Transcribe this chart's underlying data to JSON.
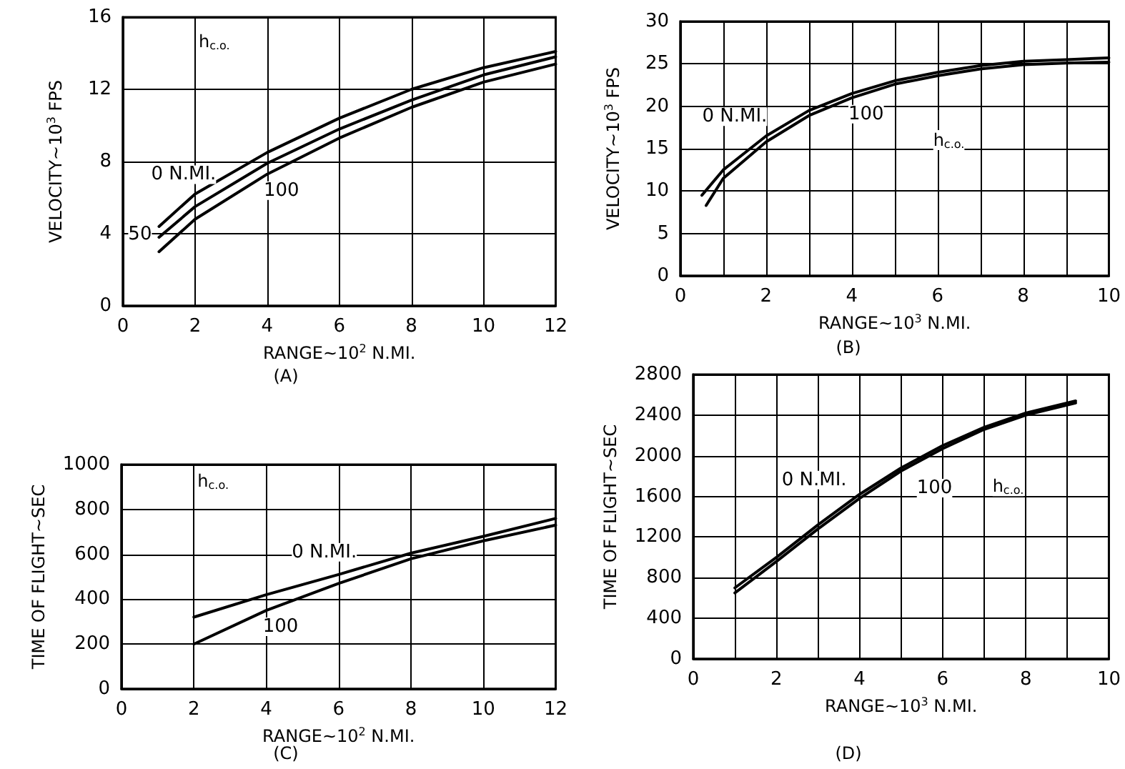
{
  "chart_data": [
    {
      "type": "line",
      "title": "(A)",
      "xlabel": "RANGE~10$^{2}$ N.MI.",
      "ylabel": "VELOCITY~10$^{3}$ FPS",
      "legend_title": "h$_{c.o.}$",
      "xlim": [
        0,
        12
      ],
      "xticks": [
        0,
        2,
        4,
        6,
        8,
        10,
        12
      ],
      "ylim": [
        0,
        16
      ],
      "yticks": [
        0,
        4,
        8,
        12,
        16
      ],
      "grid": true,
      "legend": false,
      "line_style": "solid",
      "marker": "none",
      "x": [
        1,
        2,
        4,
        6,
        8,
        10,
        12
      ],
      "series": [
        {
          "name": "0 N.MI.",
          "color": "#000000",
          "values": [
            4.4,
            6.2,
            8.5,
            10.4,
            12.0,
            13.2,
            14.1
          ]
        },
        {
          "name": "50",
          "color": "#000000",
          "values": [
            3.8,
            5.5,
            7.9,
            9.8,
            11.4,
            12.8,
            13.8
          ]
        },
        {
          "name": "100",
          "color": "#000000",
          "values": [
            3.0,
            4.8,
            7.3,
            9.3,
            11.0,
            12.4,
            13.4
          ]
        }
      ]
    },
    {
      "type": "line",
      "title": "(B)",
      "xlabel": "RANGE~10$^{3}$ N.MI.",
      "ylabel": "VELOCITY~10$^{3}$ FPS",
      "legend_title": "h$_{c.o.}$",
      "xlim": [
        0,
        10
      ],
      "xticks": [
        0,
        {
          "value": 1,
          "label": null
        },
        2,
        {
          "value": 3,
          "label": null
        },
        4,
        {
          "value": 5,
          "label": null
        },
        6,
        {
          "value": 7,
          "label": null
        },
        8,
        {
          "value": 9,
          "label": null
        },
        10
      ],
      "ylim": [
        0,
        30
      ],
      "yticks": [
        0,
        5,
        10,
        15,
        20,
        25,
        30
      ],
      "grid": true,
      "legend": false,
      "line_style": "solid",
      "marker": "none",
      "series": [
        {
          "name": "0 N.MI.",
          "color": "#000000",
          "x": [
            0.5,
            1,
            2,
            3,
            4,
            5,
            6,
            7,
            8,
            9,
            10
          ],
          "values": [
            9.5,
            12.5,
            16.5,
            19.5,
            21.5,
            23,
            24,
            24.8,
            25.3,
            25.5,
            25.7
          ]
        },
        {
          "name": "100",
          "color": "#000000",
          "x": [
            0.6,
            1,
            2,
            3,
            4,
            5,
            6,
            7,
            8,
            9,
            10
          ],
          "values": [
            8.3,
            11.5,
            15.8,
            18.9,
            21.0,
            22.6,
            23.6,
            24.4,
            24.9,
            25.1,
            25.2
          ]
        }
      ]
    },
    {
      "type": "line",
      "title": "(C)",
      "xlabel": "RANGE~10$^{2}$ N.MI.",
      "ylabel": "TIME OF FLIGHT~SEC",
      "legend_title": "h$_{c.o.}$",
      "xlim": [
        0,
        12
      ],
      "xticks": [
        0,
        2,
        4,
        6,
        8,
        10,
        12
      ],
      "ylim": [
        0,
        1000
      ],
      "yticks": [
        0,
        200,
        400,
        600,
        800,
        1000
      ],
      "grid": true,
      "legend": false,
      "line_style": "solid",
      "marker": "none",
      "x": [
        2,
        4,
        6,
        8,
        10,
        12
      ],
      "series": [
        {
          "name": "0 N.MI.",
          "color": "#000000",
          "values": [
            320,
            420,
            510,
            605,
            680,
            760
          ]
        },
        {
          "name": "100",
          "color": "#000000",
          "values": [
            200,
            350,
            470,
            580,
            660,
            730
          ]
        }
      ]
    },
    {
      "type": "line",
      "title": "(D)",
      "xlabel": "RANGE~10$^{3}$ N.MI.",
      "ylabel": "TIME OF FLIGHT~SEC",
      "legend_title": "h$_{c.o.}$",
      "xlim": [
        0,
        10
      ],
      "xticks": [
        0,
        {
          "value": 1,
          "label": null
        },
        2,
        {
          "value": 3,
          "label": null
        },
        4,
        {
          "value": 5,
          "label": null
        },
        6,
        {
          "value": 7,
          "label": null
        },
        8,
        {
          "value": 9,
          "label": null
        },
        10
      ],
      "ylim": [
        0,
        2800
      ],
      "yticks": [
        0,
        400,
        800,
        1200,
        1600,
        2000,
        2400,
        2800
      ],
      "grid": true,
      "legend": false,
      "line_style": "solid",
      "marker": "none",
      "x": [
        1,
        2,
        3,
        4,
        5,
        6,
        7,
        8,
        9.2
      ],
      "series": [
        {
          "name": "0 N.MI.",
          "color": "#000000",
          "values": [
            700,
            1000,
            1320,
            1620,
            1880,
            2100,
            2280,
            2420,
            2540
          ]
        },
        {
          "name": "100",
          "color": "#000000",
          "values": [
            650,
            960,
            1280,
            1580,
            1850,
            2070,
            2260,
            2400,
            2520
          ]
        }
      ]
    }
  ]
}
